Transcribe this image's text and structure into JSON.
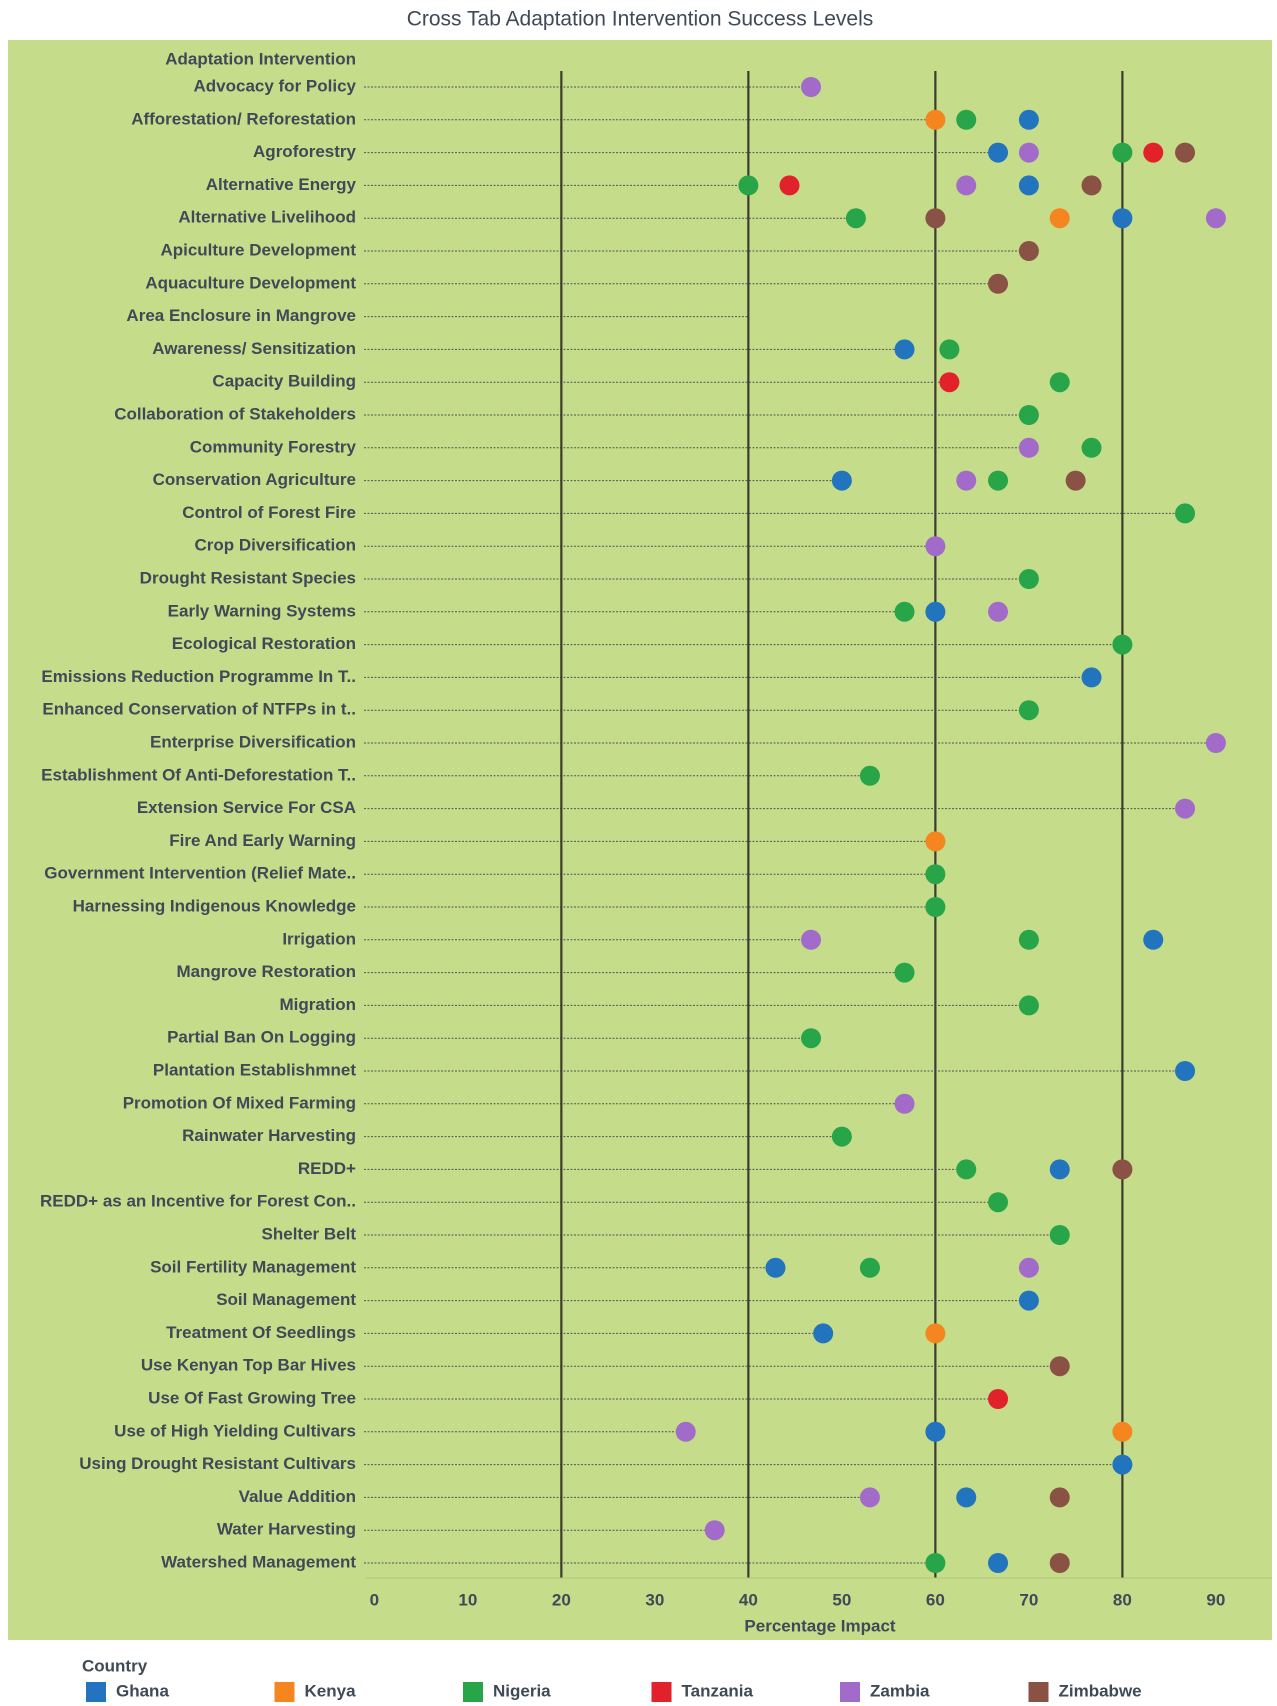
{
  "chart_data": {
    "type": "dot",
    "title": "Cross Tab Adaptation Intervention Success Levels",
    "category_header": "Adaptation Intervention",
    "x_label": "Percentage Impact",
    "legend_title": "Country",
    "legend": "bottom",
    "xlim": [
      -1,
      96
    ],
    "xticks": [
      0,
      10,
      20,
      30,
      40,
      50,
      60,
      70,
      80,
      90
    ],
    "gridlines": [
      20,
      40,
      60,
      80
    ],
    "categories": [
      "Advocacy for Policy",
      "Afforestation/ Reforestation",
      "Agroforestry",
      "Alternative Energy",
      "Alternative Livelihood",
      "Apiculture Development",
      "Aquaculture Development",
      "Area Enclosure in Mangrove",
      "Awareness/ Sensitization",
      "Capacity Building",
      "Collaboration of Stakeholders",
      "Community Forestry",
      "Conservation Agriculture",
      "Control of Forest Fire",
      "Crop Diversification",
      "Drought Resistant Species",
      "Early Warning Systems",
      "Ecological Restoration",
      "Emissions Reduction Programme In T..",
      "Enhanced Conservation of NTFPs in t..",
      "Enterprise Diversification",
      "Establishment Of Anti-Deforestation T..",
      "Extension Service For CSA",
      "Fire And Early Warning",
      "Government Intervention (Relief Mate..",
      "Harnessing Indigenous Knowledge",
      "Irrigation",
      "Mangrove Restoration",
      "Migration",
      "Partial Ban On Logging",
      "Plantation Establishmnet",
      "Promotion Of Mixed Farming",
      "Rainwater Harvesting",
      "REDD+",
      "REDD+ as an Incentive for Forest Con..",
      "Shelter Belt",
      "Soil Fertility Management",
      "Soil Management",
      "Treatment Of Seedlings",
      "Use Kenyan Top Bar Hives",
      "Use Of Fast Growing Tree",
      "Use of High Yielding Cultivars",
      "Using Drought Resistant Cultivars",
      "Value Addition",
      "Water Harvesting",
      "Watershed Management"
    ],
    "series": [
      {
        "name": "Ghana",
        "color": "#2274be",
        "values": [
          null,
          70,
          66.7,
          70,
          80,
          null,
          null,
          null,
          56.7,
          null,
          null,
          null,
          50,
          null,
          null,
          null,
          60,
          null,
          76.7,
          null,
          null,
          null,
          null,
          null,
          null,
          null,
          83.3,
          null,
          null,
          null,
          86.7,
          null,
          null,
          73.3,
          null,
          null,
          42.9,
          70,
          48,
          null,
          null,
          60,
          80,
          63.3,
          null,
          66.7
        ]
      },
      {
        "name": "Kenya",
        "color": "#f5861f",
        "values": [
          null,
          60,
          null,
          null,
          73.3,
          null,
          null,
          null,
          null,
          null,
          null,
          null,
          null,
          null,
          null,
          null,
          null,
          null,
          null,
          null,
          null,
          null,
          null,
          60,
          null,
          null,
          null,
          null,
          null,
          null,
          null,
          null,
          null,
          null,
          null,
          null,
          null,
          null,
          60,
          null,
          null,
          80,
          null,
          null,
          null,
          null
        ]
      },
      {
        "name": "Nigeria",
        "color": "#27a548",
        "values": [
          null,
          63.3,
          80,
          40,
          51.5,
          null,
          null,
          null,
          61.5,
          73.3,
          70,
          76.7,
          66.7,
          86.7,
          null,
          70,
          56.7,
          80,
          null,
          70,
          null,
          53,
          null,
          null,
          60,
          60,
          70,
          56.7,
          70,
          46.7,
          null,
          null,
          50,
          63.3,
          66.7,
          73.3,
          53,
          null,
          null,
          null,
          null,
          null,
          null,
          null,
          null,
          60
        ]
      },
      {
        "name": "Tanzania",
        "color": "#e2222a",
        "values": [
          null,
          null,
          83.3,
          44.4,
          null,
          null,
          null,
          null,
          null,
          61.5,
          null,
          null,
          null,
          null,
          null,
          null,
          null,
          null,
          null,
          null,
          null,
          null,
          null,
          null,
          null,
          null,
          null,
          null,
          null,
          null,
          null,
          null,
          null,
          null,
          null,
          null,
          null,
          null,
          null,
          null,
          66.7,
          null,
          null,
          null,
          null,
          null
        ]
      },
      {
        "name": "Zambia",
        "color": "#a36bc9",
        "values": [
          46.7,
          null,
          70,
          63.3,
          90,
          null,
          null,
          null,
          null,
          null,
          null,
          70,
          63.3,
          null,
          60,
          null,
          66.7,
          null,
          null,
          null,
          90,
          null,
          86.7,
          null,
          null,
          null,
          46.7,
          null,
          null,
          null,
          null,
          56.7,
          null,
          null,
          null,
          null,
          70,
          null,
          null,
          null,
          null,
          33.3,
          null,
          53,
          36.4,
          null
        ]
      },
      {
        "name": "Zimbabwe",
        "color": "#8a5145",
        "values": [
          null,
          null,
          86.7,
          76.7,
          60,
          70,
          66.7,
          null,
          null,
          null,
          null,
          null,
          75,
          null,
          null,
          null,
          null,
          null,
          null,
          null,
          null,
          null,
          null,
          null,
          null,
          null,
          null,
          null,
          null,
          null,
          null,
          null,
          null,
          80,
          null,
          null,
          null,
          null,
          null,
          73.3,
          null,
          null,
          null,
          73.3,
          null,
          73.3
        ]
      }
    ]
  }
}
